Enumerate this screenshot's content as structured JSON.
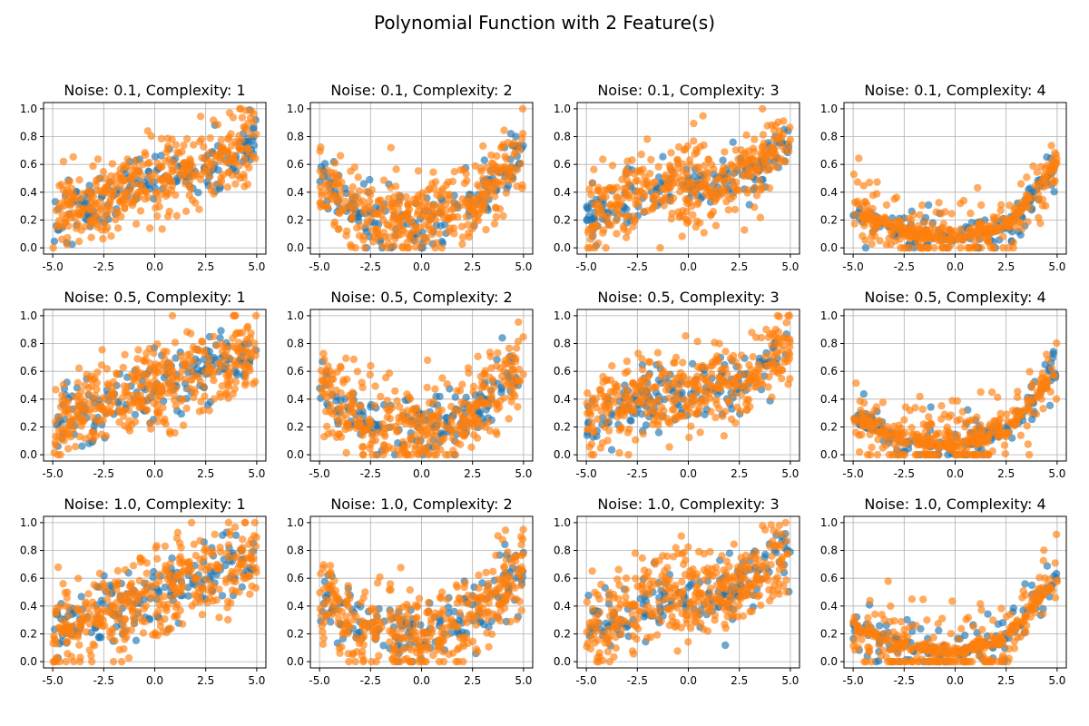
{
  "figure": {
    "suptitle": "Polynomial Function with 2 Feature(s)"
  },
  "chart_data": {
    "type": "scatter",
    "layout": "3 rows x 4 columns",
    "grid": true,
    "x_range": [
      -5,
      5
    ],
    "y_range": [
      0,
      1
    ],
    "x_ticks": [
      "-5.0",
      "-2.5",
      "0.0",
      "2.5",
      "5.0"
    ],
    "y_ticks": [
      "0.0",
      "0.2",
      "0.4",
      "0.6",
      "0.8",
      "1.0"
    ],
    "series_colors": [
      "#1f77b4",
      "#ff7f0e"
    ],
    "noise_levels": [
      "0.1",
      "0.5",
      "1.0"
    ],
    "complexities": [
      "1",
      "2",
      "3",
      "4"
    ],
    "subplots": [
      {
        "title": "Noise: 0.1, Complexity: 1"
      },
      {
        "title": "Noise: 0.1, Complexity: 2"
      },
      {
        "title": "Noise: 0.1, Complexity: 3"
      },
      {
        "title": "Noise: 0.1, Complexity: 4"
      },
      {
        "title": "Noise: 0.5, Complexity: 1"
      },
      {
        "title": "Noise: 0.5, Complexity: 2"
      },
      {
        "title": "Noise: 0.5, Complexity: 3"
      },
      {
        "title": "Noise: 0.5, Complexity: 4"
      },
      {
        "title": "Noise: 1.0, Complexity: 1"
      },
      {
        "title": "Noise: 1.0, Complexity: 2"
      },
      {
        "title": "Noise: 1.0, Complexity: 3"
      },
      {
        "title": "Noise: 1.0, Complexity: 4"
      }
    ],
    "trend_profiles": {
      "1": [
        [
          -5,
          0.22
        ],
        [
          -2.5,
          0.35
        ],
        [
          0,
          0.48
        ],
        [
          2.5,
          0.6
        ],
        [
          5,
          0.75
        ]
      ],
      "2": [
        [
          -5,
          0.45
        ],
        [
          -2.5,
          0.22
        ],
        [
          0,
          0.18
        ],
        [
          2.5,
          0.3
        ],
        [
          5,
          0.7
        ]
      ],
      "3": [
        [
          -5,
          0.2
        ],
        [
          -2.5,
          0.4
        ],
        [
          0,
          0.45
        ],
        [
          2.5,
          0.5
        ],
        [
          5,
          0.8
        ]
      ],
      "4": [
        [
          -5,
          0.25
        ],
        [
          -2.5,
          0.1
        ],
        [
          0,
          0.06
        ],
        [
          2.5,
          0.15
        ],
        [
          5,
          0.6
        ]
      ]
    },
    "spread_by_noise": {
      "0.1": 0.14,
      "0.5": 0.15,
      "1.0": 0.16
    }
  }
}
